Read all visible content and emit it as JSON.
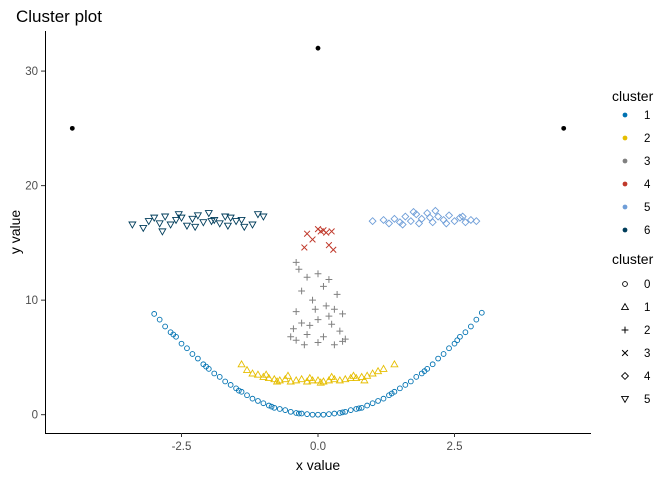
{
  "chart_data": {
    "type": "scatter",
    "title": "Cluster plot",
    "xlabel": "x value",
    "ylabel": "y value",
    "xlim": [
      -5.0,
      5.0
    ],
    "ylim": [
      -1.6,
      33.5
    ],
    "x_ticks": [
      -2.5,
      0.0,
      2.5
    ],
    "x_tick_labels": [
      "-2.5",
      "0.0",
      "2.5"
    ],
    "y_ticks": [
      0,
      10,
      20,
      30
    ],
    "y_tick_labels": [
      "0",
      "10",
      "20",
      "30"
    ],
    "grid": false,
    "legend_placement": "right",
    "color_legend": {
      "title": "cluster",
      "entries": [
        {
          "label": "1",
          "color": "#0072B2"
        },
        {
          "label": "2",
          "color": "#E6BE00"
        },
        {
          "label": "3",
          "color": "#808080"
        },
        {
          "label": "4",
          "color": "#C0392B"
        },
        {
          "label": "5",
          "color": "#6F9ED8"
        },
        {
          "label": "6",
          "color": "#003D5B"
        }
      ]
    },
    "shape_legend": {
      "title": "cluster",
      "entries": [
        {
          "label": "0",
          "shape": "circle"
        },
        {
          "label": "1",
          "shape": "triangle"
        },
        {
          "label": "2",
          "shape": "plus"
        },
        {
          "label": "3",
          "shape": "cross"
        },
        {
          "label": "4",
          "shape": "diamond"
        },
        {
          "label": "5",
          "shape": "triangle-down"
        }
      ]
    },
    "series": [
      {
        "color_index": 0,
        "shape": "circle",
        "points": [
          [
            -3.0,
            8.8
          ],
          [
            -2.9,
            8.3
          ],
          [
            -2.8,
            7.7
          ],
          [
            -2.7,
            7.2
          ],
          [
            -2.6,
            6.8
          ],
          [
            -2.5,
            6.2
          ],
          [
            -2.4,
            5.8
          ],
          [
            -2.3,
            5.3
          ],
          [
            -2.2,
            4.9
          ],
          [
            -2.1,
            4.4
          ],
          [
            -2.0,
            4.0
          ],
          [
            -1.9,
            3.6
          ],
          [
            -1.8,
            3.3
          ],
          [
            -1.7,
            2.9
          ],
          [
            -1.6,
            2.6
          ],
          [
            -1.5,
            2.3
          ],
          [
            -1.4,
            2.0
          ],
          [
            -1.3,
            1.7
          ],
          [
            -1.2,
            1.4
          ],
          [
            -1.1,
            1.2
          ],
          [
            -1.0,
            1.0
          ],
          [
            -0.9,
            0.8
          ],
          [
            -0.8,
            0.6
          ],
          [
            -0.7,
            0.5
          ],
          [
            -0.6,
            0.4
          ],
          [
            -0.5,
            0.25
          ],
          [
            -0.4,
            0.15
          ],
          [
            -0.3,
            0.1
          ],
          [
            -0.2,
            0.05
          ],
          [
            -0.1,
            0.0
          ],
          [
            0.0,
            0.0
          ],
          [
            0.1,
            0.0
          ],
          [
            0.2,
            0.05
          ],
          [
            0.3,
            0.1
          ],
          [
            0.4,
            0.15
          ],
          [
            0.5,
            0.25
          ],
          [
            0.6,
            0.4
          ],
          [
            0.7,
            0.5
          ],
          [
            0.8,
            0.6
          ],
          [
            0.9,
            0.8
          ],
          [
            1.0,
            1.0
          ],
          [
            1.1,
            1.2
          ],
          [
            1.2,
            1.4
          ],
          [
            1.3,
            1.7
          ],
          [
            1.4,
            2.0
          ],
          [
            1.5,
            2.3
          ],
          [
            1.6,
            2.6
          ],
          [
            1.7,
            2.9
          ],
          [
            1.8,
            3.3
          ],
          [
            1.9,
            3.6
          ],
          [
            2.0,
            4.0
          ],
          [
            2.1,
            4.4
          ],
          [
            2.2,
            4.9
          ],
          [
            2.3,
            5.3
          ],
          [
            2.4,
            5.8
          ],
          [
            2.5,
            6.2
          ],
          [
            2.6,
            6.8
          ],
          [
            2.7,
            7.2
          ],
          [
            2.8,
            7.7
          ],
          [
            2.9,
            8.3
          ],
          [
            3.0,
            8.9
          ],
          [
            -2.05,
            4.2
          ],
          [
            -1.45,
            2.1
          ],
          [
            -0.85,
            0.7
          ],
          [
            0.75,
            0.55
          ],
          [
            1.35,
            1.85
          ],
          [
            1.95,
            3.8
          ],
          [
            2.55,
            6.5
          ],
          [
            -2.65,
            7.0
          ],
          [
            -0.35,
            0.1
          ],
          [
            0.45,
            0.2
          ]
        ]
      },
      {
        "color_index": 1,
        "shape": "triangle",
        "points": [
          [
            -1.4,
            4.4
          ],
          [
            -1.3,
            3.9
          ],
          [
            -1.2,
            3.6
          ],
          [
            -1.1,
            3.5
          ],
          [
            -1.0,
            3.3
          ],
          [
            -0.9,
            3.2
          ],
          [
            -0.8,
            3.1
          ],
          [
            -0.7,
            3.0
          ],
          [
            -0.6,
            3.1
          ],
          [
            -0.5,
            2.9
          ],
          [
            -0.4,
            3.0
          ],
          [
            -0.3,
            3.1
          ],
          [
            -0.2,
            2.9
          ],
          [
            -0.1,
            3.0
          ],
          [
            0.0,
            3.0
          ],
          [
            0.1,
            2.9
          ],
          [
            0.2,
            3.0
          ],
          [
            0.3,
            3.1
          ],
          [
            0.4,
            3.0
          ],
          [
            0.5,
            3.1
          ],
          [
            0.6,
            3.2
          ],
          [
            0.7,
            3.2
          ],
          [
            0.8,
            3.3
          ],
          [
            0.9,
            3.4
          ],
          [
            1.0,
            3.6
          ],
          [
            1.1,
            3.8
          ],
          [
            1.2,
            4.0
          ],
          [
            1.4,
            4.4
          ],
          [
            -0.95,
            3.5
          ],
          [
            -0.55,
            3.4
          ],
          [
            -0.15,
            3.2
          ],
          [
            0.25,
            3.3
          ],
          [
            0.65,
            3.4
          ],
          [
            -0.75,
            2.9
          ],
          [
            0.05,
            2.8
          ],
          [
            0.85,
            3.0
          ]
        ]
      },
      {
        "color_index": 2,
        "shape": "plus",
        "points": [
          [
            -0.4,
            13.3
          ],
          [
            -0.35,
            12.7
          ],
          [
            -0.2,
            12.0
          ],
          [
            0.0,
            12.3
          ],
          [
            0.2,
            11.8
          ],
          [
            0.1,
            11.2
          ],
          [
            -0.3,
            10.8
          ],
          [
            0.35,
            10.5
          ],
          [
            -0.1,
            10.0
          ],
          [
            0.15,
            9.5
          ],
          [
            -0.4,
            9.0
          ],
          [
            0.3,
            9.2
          ],
          [
            0.45,
            8.8
          ],
          [
            -0.3,
            8.0
          ],
          [
            0.0,
            8.3
          ],
          [
            0.25,
            7.9
          ],
          [
            -0.45,
            7.5
          ],
          [
            0.4,
            7.3
          ],
          [
            -0.2,
            7.0
          ],
          [
            0.1,
            6.8
          ],
          [
            -0.4,
            6.5
          ],
          [
            0.45,
            6.4
          ],
          [
            0.0,
            6.3
          ],
          [
            -0.25,
            6.1
          ],
          [
            0.3,
            6.1
          ],
          [
            -0.5,
            6.8
          ],
          [
            0.5,
            6.6
          ],
          [
            -0.15,
            7.8
          ],
          [
            0.2,
            8.6
          ],
          [
            -0.05,
            9.2
          ]
        ]
      },
      {
        "color_index": 3,
        "shape": "cross",
        "points": [
          [
            -0.2,
            15.8
          ],
          [
            -0.1,
            15.3
          ],
          [
            -0.25,
            14.6
          ],
          [
            0.05,
            16.0
          ],
          [
            0.1,
            16.1
          ],
          [
            0.15,
            15.9
          ],
          [
            0.25,
            16.0
          ],
          [
            0.2,
            14.8
          ],
          [
            0.28,
            14.4
          ],
          [
            0.0,
            16.2
          ]
        ]
      },
      {
        "color_index": 4,
        "shape": "diamond",
        "points": [
          [
            1.0,
            16.9
          ],
          [
            1.2,
            17.0
          ],
          [
            1.3,
            16.7
          ],
          [
            1.4,
            17.1
          ],
          [
            1.5,
            16.8
          ],
          [
            1.6,
            17.3
          ],
          [
            1.7,
            16.9
          ],
          [
            1.8,
            17.5
          ],
          [
            1.9,
            17.1
          ],
          [
            2.0,
            17.6
          ],
          [
            2.1,
            16.8
          ],
          [
            2.2,
            17.3
          ],
          [
            2.3,
            17.0
          ],
          [
            2.4,
            17.4
          ],
          [
            2.5,
            16.9
          ],
          [
            2.6,
            17.2
          ],
          [
            2.7,
            16.8
          ],
          [
            2.8,
            17.0
          ],
          [
            2.9,
            16.9
          ],
          [
            1.55,
            16.6
          ],
          [
            1.85,
            16.7
          ],
          [
            2.05,
            17.2
          ],
          [
            2.35,
            16.7
          ],
          [
            2.65,
            17.3
          ],
          [
            1.75,
            17.7
          ],
          [
            2.15,
            17.8
          ]
        ]
      },
      {
        "color_index": 5,
        "shape": "triangle-down",
        "points": [
          [
            -3.4,
            16.6
          ],
          [
            -3.2,
            16.3
          ],
          [
            -3.1,
            16.9
          ],
          [
            -3.0,
            17.2
          ],
          [
            -2.9,
            16.7
          ],
          [
            -2.8,
            17.3
          ],
          [
            -2.7,
            16.6
          ],
          [
            -2.6,
            17.0
          ],
          [
            -2.5,
            17.2
          ],
          [
            -2.4,
            16.5
          ],
          [
            -2.3,
            17.1
          ],
          [
            -2.2,
            17.4
          ],
          [
            -2.1,
            16.8
          ],
          [
            -2.0,
            17.6
          ],
          [
            -1.9,
            17.0
          ],
          [
            -1.8,
            16.7
          ],
          [
            -1.7,
            17.3
          ],
          [
            -1.6,
            17.2
          ],
          [
            -1.5,
            16.9
          ],
          [
            -1.4,
            17.0
          ],
          [
            -1.2,
            16.6
          ],
          [
            -1.1,
            17.5
          ],
          [
            -1.0,
            17.3
          ],
          [
            -2.85,
            16.0
          ],
          [
            -2.55,
            17.5
          ],
          [
            -2.25,
            16.4
          ],
          [
            -1.95,
            16.9
          ],
          [
            -1.65,
            16.5
          ],
          [
            -1.35,
            16.4
          ]
        ]
      },
      {
        "color": "#000000",
        "shape": "dot",
        "points": [
          [
            -4.5,
            25.0
          ],
          [
            0.0,
            32.0
          ],
          [
            4.5,
            25.0
          ]
        ]
      }
    ]
  }
}
